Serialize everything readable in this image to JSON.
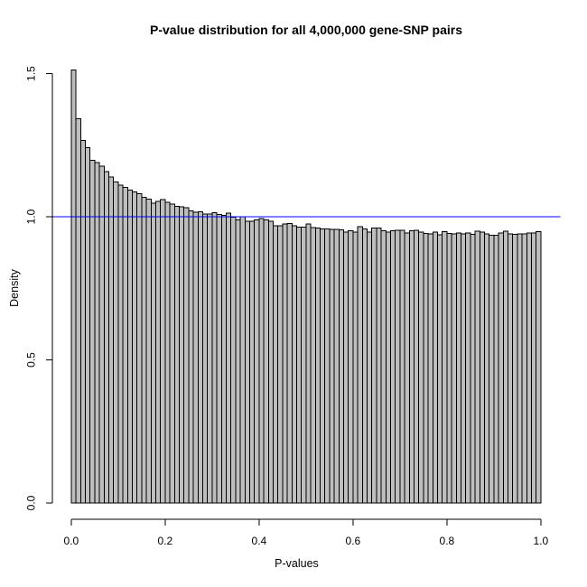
{
  "chart_data": {
    "type": "bar",
    "subtype": "histogram",
    "title": "P-value distribution for all 4,000,000 gene-SNP pairs",
    "xlabel": "P-values",
    "ylabel": "Density",
    "bin_start": 0,
    "bin_width": 0.01,
    "values": [
      1.512,
      1.342,
      1.266,
      1.241,
      1.197,
      1.189,
      1.176,
      1.158,
      1.139,
      1.121,
      1.11,
      1.103,
      1.093,
      1.086,
      1.081,
      1.068,
      1.062,
      1.047,
      1.054,
      1.06,
      1.05,
      1.044,
      1.037,
      1.034,
      1.032,
      1.021,
      1.016,
      1.017,
      1.01,
      1.01,
      1.015,
      1.008,
      1.005,
      1.012,
      0.998,
      0.989,
      1.0,
      0.984,
      0.984,
      0.989,
      0.993,
      0.989,
      0.984,
      0.968,
      0.968,
      0.974,
      0.977,
      0.968,
      0.963,
      0.963,
      0.974,
      0.962,
      0.96,
      0.958,
      0.958,
      0.956,
      0.956,
      0.955,
      0.947,
      0.951,
      0.947,
      0.965,
      0.958,
      0.947,
      0.961,
      0.961,
      0.951,
      0.947,
      0.951,
      0.953,
      0.953,
      0.944,
      0.951,
      0.953,
      0.947,
      0.942,
      0.94,
      0.947,
      0.937,
      0.948,
      0.942,
      0.94,
      0.944,
      0.94,
      0.944,
      0.938,
      0.95,
      0.946,
      0.94,
      0.935,
      0.935,
      0.944,
      0.95,
      0.94,
      0.938,
      0.94,
      0.94,
      0.944,
      0.944,
      0.948
    ],
    "xlim": [
      0,
      1
    ],
    "ylim": [
      0,
      1.5
    ],
    "x_tick_values": [
      0.0,
      0.2,
      0.4,
      0.6,
      0.8,
      1.0
    ],
    "x_tick_labels": [
      "0.0",
      "0.2",
      "0.4",
      "0.6",
      "0.8",
      "1.0"
    ],
    "y_tick_values": [
      0.0,
      0.5,
      1.0,
      1.5
    ],
    "y_tick_labels": [
      "0.0",
      "0.5",
      "1.0",
      "1.5"
    ],
    "grid": false,
    "legend": null,
    "reference_line": {
      "y": 1.0,
      "color": "#0000ff"
    },
    "bar_fill": "#bebebe",
    "bar_stroke": "#000000",
    "axis_color": "#000000",
    "background": "#ffffff"
  }
}
